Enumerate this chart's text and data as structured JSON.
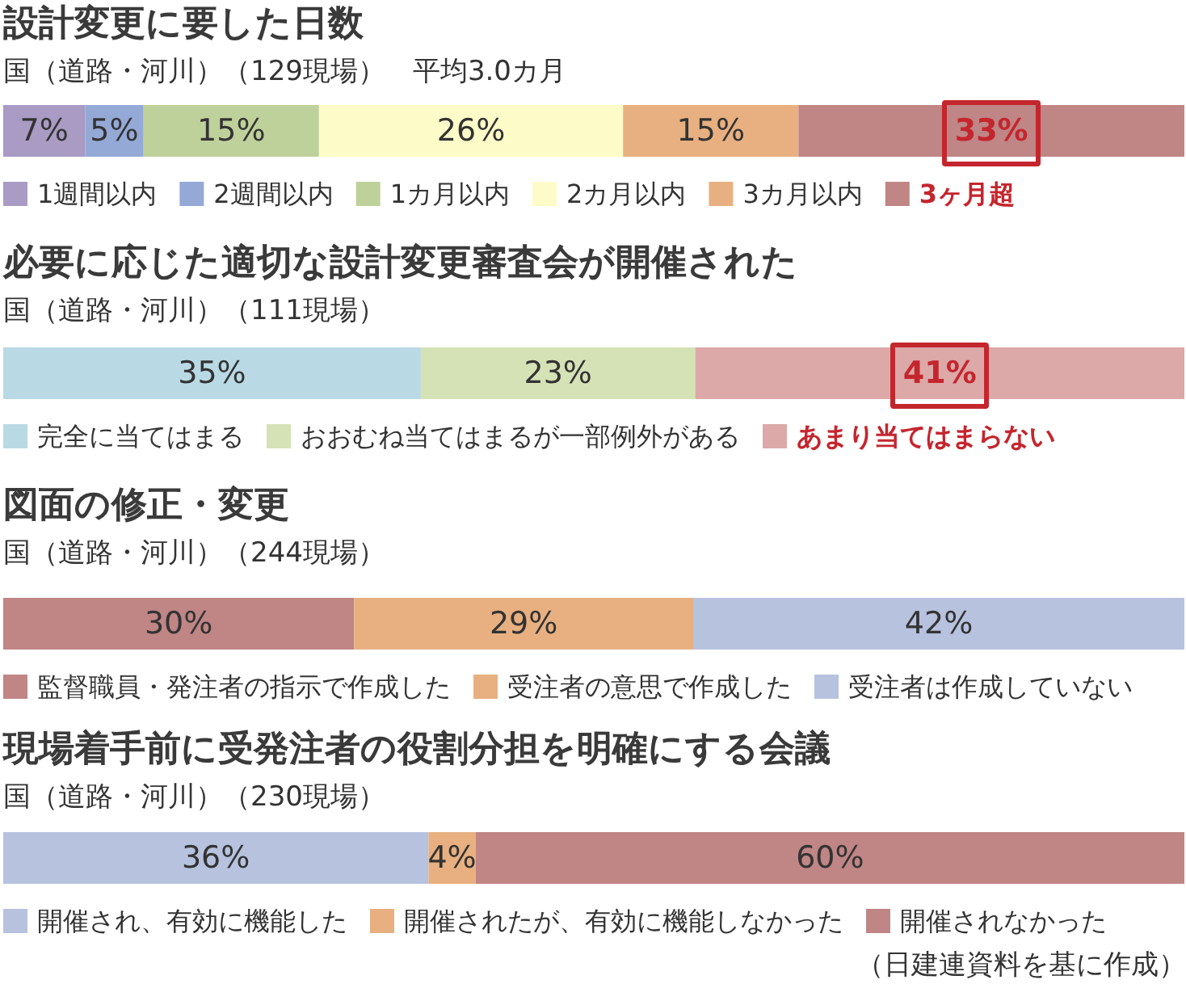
{
  "chart_data": [
    {
      "type": "bar",
      "orientation": "horizontal",
      "stacked": true,
      "title": "設計変更に要した日数",
      "subtitle": "国（道路・河川）（129現場）　平均3.0カ月",
      "categories": [
        null
      ],
      "legend": "bottom",
      "tick_labels": false,
      "series": [
        {
          "name": "1週間以内",
          "color": "#a99bc4",
          "values": [
            7
          ],
          "value_labels": [
            "7%"
          ]
        },
        {
          "name": "2週間以内",
          "color": "#94a9d6",
          "values": [
            5
          ],
          "value_labels": [
            "5%"
          ]
        },
        {
          "name": "1カ月以内",
          "color": "#bfd19b",
          "values": [
            15
          ],
          "value_labels": [
            "15%"
          ]
        },
        {
          "name": "2カ月以内",
          "color": "#fdfbc8",
          "values": [
            26
          ],
          "value_labels": [
            "26%"
          ]
        },
        {
          "name": "3カ月以内",
          "color": "#e8b080",
          "values": [
            15
          ],
          "value_labels": [
            "15%"
          ]
        },
        {
          "name": "3ヶ月超",
          "color": "#c08585",
          "values": [
            33
          ],
          "value_labels": [
            "33%"
          ]
        }
      ]
    },
    {
      "type": "bar",
      "orientation": "horizontal",
      "stacked": true,
      "title": "必要に応じた適切な設計変更審査会が開催された",
      "subtitle": "国（道路・河川）（111現場）",
      "categories": [
        null
      ],
      "legend": "bottom",
      "tick_labels": false,
      "series": [
        {
          "name": "完全に当てはまる",
          "color": "#b9d9e4",
          "values": [
            35
          ],
          "value_labels": [
            "35%"
          ]
        },
        {
          "name": "おおむね当てはまるが一部例外がある",
          "color": "#d5e2b6",
          "values": [
            23
          ],
          "value_labels": [
            "23%"
          ]
        },
        {
          "name": "あまり当てはまらない",
          "color": "#dca8a8",
          "values": [
            41
          ],
          "value_labels": [
            "41%"
          ]
        }
      ]
    },
    {
      "type": "bar",
      "orientation": "horizontal",
      "stacked": true,
      "title": "図面の修正・変更",
      "subtitle": "国（道路・河川）（244現場）",
      "categories": [
        null
      ],
      "legend": "bottom",
      "tick_labels": false,
      "series": [
        {
          "name": "監督職員・発注者の指示で作成した",
          "color": "#c08585",
          "values": [
            30
          ],
          "value_labels": [
            "30%"
          ]
        },
        {
          "name": "受注者の意思で作成した",
          "color": "#e8b080",
          "values": [
            29
          ],
          "value_labels": [
            "29%"
          ]
        },
        {
          "name": "受注者は作成していない",
          "color": "#b6c2de",
          "values": [
            42
          ],
          "value_labels": [
            "42%"
          ]
        }
      ]
    },
    {
      "type": "bar",
      "orientation": "horizontal",
      "stacked": true,
      "title": "現場着手前に受発注者の役割分担を明確にする会議",
      "subtitle": "国（道路・河川）（230現場）",
      "categories": [
        null
      ],
      "legend": "bottom",
      "tick_labels": false,
      "annotations": [
        "（日建連資料を基に作成）"
      ],
      "series": [
        {
          "name": "開催され、有効に機能した",
          "color": "#b6c2de",
          "values": [
            36
          ],
          "value_labels": [
            "36%"
          ]
        },
        {
          "name": "開催されたが、有効に機能しなかった",
          "color": "#e8b080",
          "values": [
            4
          ],
          "value_labels": [
            "4%"
          ]
        },
        {
          "name": "開催されなかった",
          "color": "#c08585",
          "values": [
            60
          ],
          "value_labels": [
            "60%"
          ]
        }
      ]
    }
  ]
}
